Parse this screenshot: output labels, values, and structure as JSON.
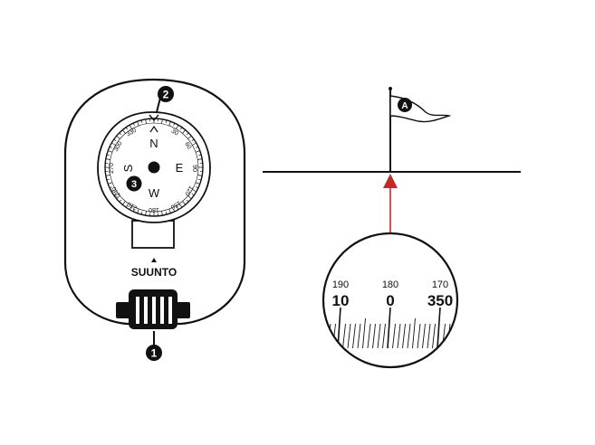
{
  "colors": {
    "ink": "#111111",
    "sight_line": "#c62828",
    "background": "#ffffff"
  },
  "compass": {
    "brand": "SUUNTO",
    "cardinals": {
      "north": "N",
      "east": "E",
      "south": "S",
      "west": "W"
    },
    "bearing_labels": [
      "330",
      "30",
      "60",
      "90",
      "120",
      "150",
      "180",
      "210",
      "240",
      "270",
      "300"
    ],
    "callouts": {
      "dial": "2",
      "knob": "1",
      "center": "3"
    }
  },
  "target": {
    "flag_label": "A"
  },
  "scale_view": {
    "small_labels": [
      "190",
      "180",
      "170"
    ],
    "large_labels": [
      "10",
      "0",
      "350"
    ]
  },
  "icons": [
    "flag-icon",
    "sight-arrow-icon",
    "compass-needle-icon"
  ]
}
